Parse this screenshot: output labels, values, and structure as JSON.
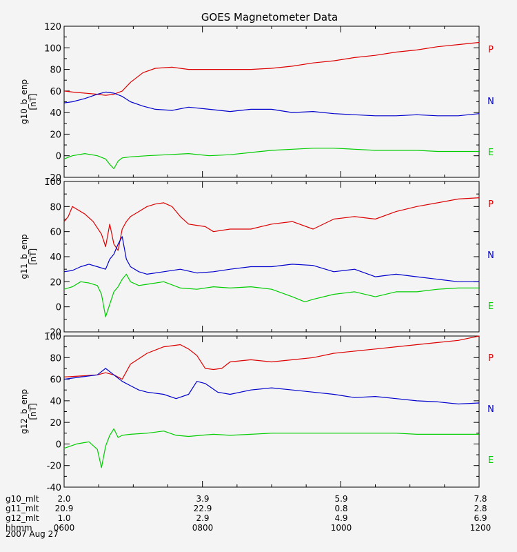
{
  "chart_data": {
    "type": "line",
    "title": "GOES Magnetometer Data",
    "date": "2007 Aug 27",
    "panels": [
      {
        "ylabel_line1": "g10_b_enp",
        "ylabel_line2": "[nT]",
        "ylim": [
          -20,
          120
        ],
        "yticks": [
          120,
          100,
          80,
          60,
          40,
          20,
          0,
          -20
        ],
        "series": [
          {
            "name": "P",
            "color": "#dd0000",
            "x": [
              0,
              0.02,
              0.05,
              0.08,
              0.1,
              0.12,
              0.14,
              0.16,
              0.19,
              0.22,
              0.26,
              0.3,
              0.35,
              0.4,
              0.45,
              0.5,
              0.55,
              0.6,
              0.65,
              0.7,
              0.75,
              0.8,
              0.85,
              0.9,
              0.95,
              1.0
            ],
            "y": [
              60,
              59,
              58,
              57,
              56,
              57,
              60,
              68,
              77,
              81,
              82,
              80,
              80,
              80,
              80,
              81,
              83,
              86,
              88,
              91,
              93,
              96,
              98,
              101,
              103,
              105
            ]
          },
          {
            "name": "N",
            "color": "#0000cc",
            "x": [
              0,
              0.02,
              0.05,
              0.08,
              0.1,
              0.12,
              0.14,
              0.16,
              0.19,
              0.22,
              0.26,
              0.3,
              0.35,
              0.4,
              0.45,
              0.5,
              0.55,
              0.6,
              0.65,
              0.7,
              0.75,
              0.8,
              0.85,
              0.9,
              0.95,
              1.0
            ],
            "y": [
              49,
              50,
              53,
              57,
              59,
              58,
              55,
              50,
              46,
              43,
              42,
              45,
              43,
              41,
              43,
              43,
              40,
              41,
              39,
              38,
              37,
              37,
              38,
              37,
              37,
              39
            ]
          },
          {
            "name": "E",
            "color": "#00cc00",
            "x": [
              0,
              0.02,
              0.05,
              0.08,
              0.1,
              0.11,
              0.12,
              0.13,
              0.14,
              0.16,
              0.2,
              0.25,
              0.3,
              0.35,
              0.4,
              0.45,
              0.5,
              0.55,
              0.6,
              0.65,
              0.7,
              0.75,
              0.8,
              0.85,
              0.9,
              0.95,
              1.0
            ],
            "y": [
              -3,
              0,
              2,
              0,
              -3,
              -8,
              -12,
              -5,
              -2,
              -1,
              0,
              1,
              2,
              0,
              1,
              3,
              5,
              6,
              7,
              7,
              6,
              5,
              5,
              5,
              4,
              4,
              4
            ]
          }
        ]
      },
      {
        "ylabel_line1": "g11_b_enp",
        "ylabel_line2": "[nT]",
        "ylim": [
          -20,
          100
        ],
        "yticks": [
          100,
          80,
          60,
          40,
          20,
          0,
          -20
        ],
        "series": [
          {
            "name": "P",
            "color": "#dd0000",
            "x": [
              0,
              0.01,
              0.02,
              0.03,
              0.05,
              0.07,
              0.09,
              0.1,
              0.11,
              0.12,
              0.13,
              0.14,
              0.15,
              0.16,
              0.18,
              0.2,
              0.22,
              0.24,
              0.26,
              0.28,
              0.3,
              0.32,
              0.34,
              0.36,
              0.4,
              0.45,
              0.5,
              0.55,
              0.6,
              0.65,
              0.7,
              0.75,
              0.8,
              0.85,
              0.9,
              0.95,
              1.0
            ],
            "y": [
              68,
              72,
              80,
              78,
              74,
              68,
              58,
              48,
              66,
              50,
              45,
              62,
              68,
              72,
              76,
              80,
              82,
              83,
              80,
              72,
              66,
              65,
              64,
              60,
              62,
              62,
              66,
              68,
              62,
              70,
              72,
              70,
              76,
              80,
              83,
              86,
              87
            ]
          },
          {
            "name": "N",
            "color": "#0000cc",
            "x": [
              0,
              0.02,
              0.04,
              0.06,
              0.08,
              0.1,
              0.11,
              0.12,
              0.13,
              0.14,
              0.15,
              0.16,
              0.18,
              0.2,
              0.24,
              0.28,
              0.32,
              0.36,
              0.4,
              0.45,
              0.5,
              0.55,
              0.6,
              0.65,
              0.7,
              0.75,
              0.8,
              0.85,
              0.9,
              0.95,
              1.0
            ],
            "y": [
              28,
              29,
              32,
              34,
              32,
              30,
              38,
              42,
              50,
              56,
              38,
              32,
              28,
              26,
              28,
              30,
              27,
              28,
              30,
              32,
              32,
              34,
              33,
              28,
              30,
              24,
              26,
              24,
              22,
              20,
              20
            ]
          },
          {
            "name": "E",
            "color": "#00cc00",
            "x": [
              0,
              0.02,
              0.04,
              0.06,
              0.08,
              0.09,
              0.1,
              0.11,
              0.12,
              0.13,
              0.14,
              0.15,
              0.16,
              0.18,
              0.2,
              0.24,
              0.28,
              0.32,
              0.36,
              0.4,
              0.45,
              0.5,
              0.55,
              0.58,
              0.6,
              0.65,
              0.7,
              0.75,
              0.8,
              0.85,
              0.9,
              0.95,
              1.0
            ],
            "y": [
              14,
              16,
              20,
              19,
              17,
              10,
              -8,
              2,
              12,
              16,
              22,
              26,
              20,
              17,
              18,
              20,
              15,
              14,
              16,
              15,
              16,
              14,
              8,
              4,
              6,
              10,
              12,
              8,
              12,
              12,
              14,
              15,
              15
            ]
          }
        ]
      },
      {
        "ylabel_line1": "g12_b_enp",
        "ylabel_line2": "[nT]",
        "ylim": [
          -40,
          100
        ],
        "yticks": [
          100,
          80,
          60,
          40,
          20,
          0,
          -20,
          -40
        ],
        "series": [
          {
            "name": "P",
            "color": "#dd0000",
            "x": [
              0,
              0.04,
              0.08,
              0.1,
              0.12,
              0.14,
              0.16,
              0.2,
              0.24,
              0.28,
              0.3,
              0.32,
              0.34,
              0.36,
              0.38,
              0.4,
              0.45,
              0.5,
              0.55,
              0.6,
              0.65,
              0.7,
              0.75,
              0.8,
              0.85,
              0.9,
              0.95,
              1.0
            ],
            "y": [
              62,
              63,
              64,
              66,
              64,
              60,
              74,
              84,
              90,
              92,
              88,
              82,
              70,
              69,
              70,
              76,
              78,
              76,
              78,
              80,
              84,
              86,
              88,
              90,
              92,
              94,
              96,
              100
            ]
          },
          {
            "name": "N",
            "color": "#0000cc",
            "x": [
              0,
              0.04,
              0.08,
              0.1,
              0.12,
              0.14,
              0.16,
              0.18,
              0.2,
              0.24,
              0.27,
              0.3,
              0.32,
              0.34,
              0.37,
              0.4,
              0.45,
              0.5,
              0.55,
              0.6,
              0.65,
              0.7,
              0.75,
              0.8,
              0.85,
              0.9,
              0.95,
              1.0
            ],
            "y": [
              60,
              62,
              64,
              70,
              64,
              58,
              54,
              50,
              48,
              46,
              42,
              46,
              58,
              56,
              48,
              46,
              50,
              52,
              50,
              48,
              46,
              43,
              44,
              42,
              40,
              39,
              37,
              38
            ]
          },
          {
            "name": "E",
            "color": "#00cc00",
            "x": [
              0,
              0.03,
              0.06,
              0.08,
              0.09,
              0.1,
              0.11,
              0.12,
              0.13,
              0.14,
              0.16,
              0.2,
              0.24,
              0.27,
              0.3,
              0.33,
              0.36,
              0.4,
              0.45,
              0.5,
              0.55,
              0.6,
              0.65,
              0.7,
              0.75,
              0.8,
              0.85,
              0.9,
              0.95,
              1.0
            ],
            "y": [
              -4,
              0,
              2,
              -5,
              -22,
              -2,
              8,
              14,
              6,
              8,
              9,
              10,
              12,
              8,
              7,
              8,
              9,
              8,
              9,
              10,
              10,
              10,
              10,
              10,
              10,
              10,
              9,
              9,
              9,
              9
            ]
          }
        ]
      }
    ],
    "xaxis_rows": [
      {
        "label": "g10_mlt",
        "values": [
          "2.0",
          "3.9",
          "5.9",
          "7.8"
        ]
      },
      {
        "label": "g11_mlt",
        "values": [
          "20.9",
          "22.9",
          "0.8",
          "2.8"
        ]
      },
      {
        "label": "g12_mlt",
        "values": [
          "1.0",
          "2.9",
          "4.9",
          "6.9"
        ]
      },
      {
        "label": "hhmm",
        "values": [
          "0600",
          "0800",
          "1000",
          "1200"
        ]
      }
    ],
    "x_ticks_major": [
      0,
      0.3333,
      0.6667,
      1.0
    ],
    "x_ticks_minor": [
      0.0833,
      0.1667,
      0.25,
      0.4167,
      0.5,
      0.5833,
      0.75,
      0.8333,
      0.9167
    ]
  }
}
